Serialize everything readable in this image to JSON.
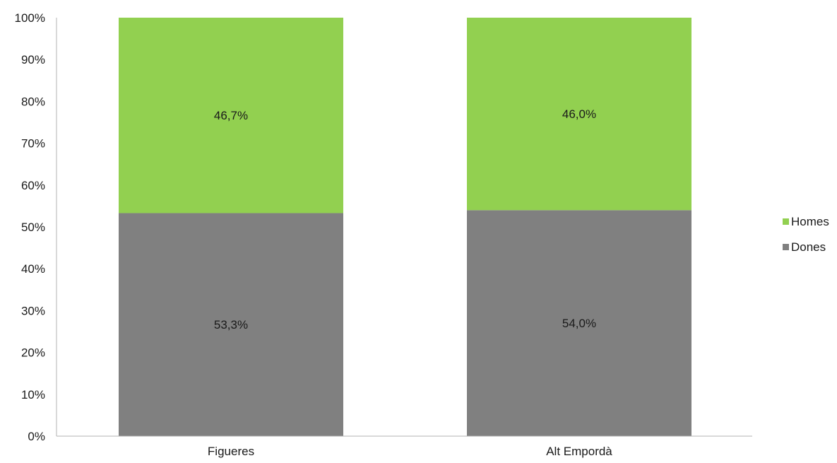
{
  "chart_data": {
    "type": "bar",
    "stacked": true,
    "percent_stacked": true,
    "categories": [
      "Figueres",
      "Alt Empordà"
    ],
    "series": [
      {
        "name": "Dones",
        "values": [
          53.3,
          54.0
        ],
        "labels": [
          "53,3%",
          "54,0%"
        ],
        "color": "#808080"
      },
      {
        "name": "Homes",
        "values": [
          46.7,
          46.0
        ],
        "labels": [
          "46,7%",
          "46,0%"
        ],
        "color": "#92d050"
      }
    ],
    "ylim": [
      0,
      100
    ],
    "yticks": [
      {
        "value": 0,
        "label": "0%"
      },
      {
        "value": 10,
        "label": "10%"
      },
      {
        "value": 20,
        "label": "20%"
      },
      {
        "value": 30,
        "label": "30%"
      },
      {
        "value": 40,
        "label": "40%"
      },
      {
        "value": 50,
        "label": "50%"
      },
      {
        "value": 60,
        "label": "60%"
      },
      {
        "value": 70,
        "label": "70%"
      },
      {
        "value": 80,
        "label": "80%"
      },
      {
        "value": 90,
        "label": "90%"
      },
      {
        "value": 100,
        "label": "100%"
      }
    ],
    "grid": false,
    "legend_position": "right",
    "legend_order": [
      "Homes",
      "Dones"
    ],
    "axis_color": "#b3b3b3"
  }
}
